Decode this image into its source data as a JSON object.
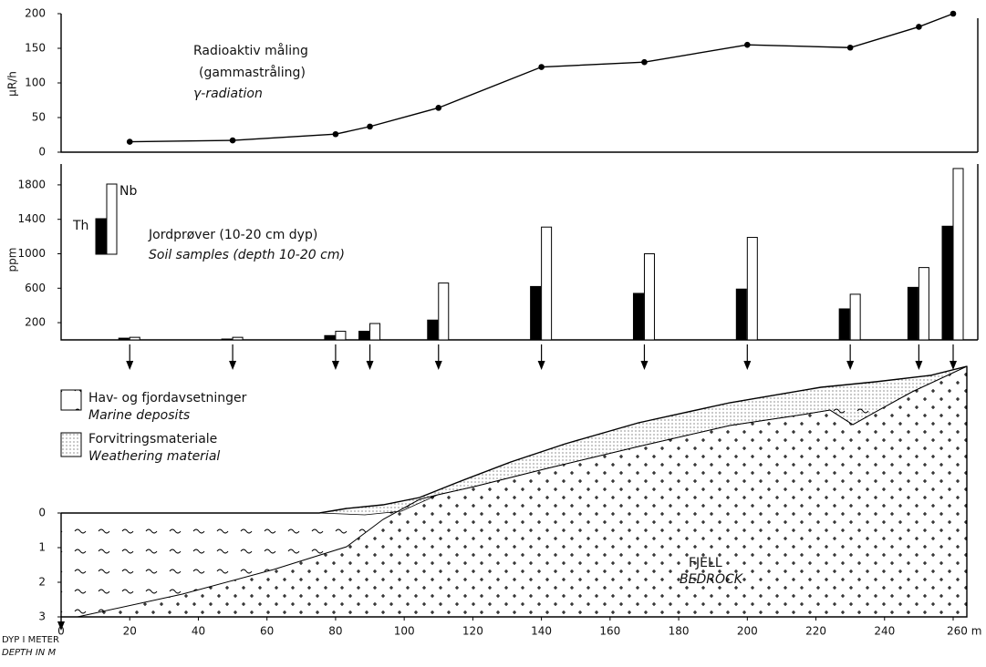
{
  "chart_data": [
    {
      "type": "line",
      "y_label": "μR/h",
      "annotations": [
        "Radioaktiv måling",
        "(gammastråling)",
        "γ-radiation"
      ],
      "x": [
        20,
        50,
        80,
        90,
        110,
        140,
        170,
        200,
        230,
        250,
        260
      ],
      "values": [
        15,
        17,
        26,
        37,
        64,
        123,
        130,
        155,
        151,
        181,
        200
      ],
      "color": "#000000",
      "xlim": [
        0,
        260
      ],
      "ylim": [
        0,
        200
      ],
      "yticks": [
        0,
        50,
        100,
        150,
        200
      ]
    },
    {
      "type": "bar",
      "y_label": "ppm",
      "annotations": [
        "Jordprøver (10-20 cm dyp)",
        "Soil samples (depth 10-20 cm)"
      ],
      "x": [
        20,
        50,
        80,
        90,
        110,
        140,
        170,
        200,
        230,
        250,
        260
      ],
      "series": [
        {
          "name": "Th",
          "color": "#000000",
          "values": [
            20,
            10,
            50,
            100,
            230,
            620,
            540,
            590,
            360,
            610,
            1320
          ]
        },
        {
          "name": "Nb",
          "color": "#ffffff",
          "values": [
            30,
            30,
            100,
            190,
            660,
            1310,
            1000,
            1190,
            530,
            840,
            1990
          ]
        }
      ],
      "xlim": [
        0,
        260
      ],
      "ylim": [
        0,
        2000
      ],
      "yticks": [
        200,
        600,
        1000,
        1400,
        1800
      ]
    },
    {
      "type": "cross-section",
      "y_label": [
        "DYP I METER",
        "DEPTH IN M"
      ],
      "legend": [
        [
          "Hav- og fjordavsetninger",
          "Marine deposits"
        ],
        [
          "Forvitringsmateriale",
          "Weathering material"
        ]
      ],
      "annotations": [
        "FJELL",
        "BEDROCK"
      ],
      "xlim": [
        0,
        260
      ],
      "xticks": [
        0,
        20,
        40,
        60,
        80,
        100,
        120,
        140,
        160,
        180,
        200,
        220,
        240,
        {
          "value": 260,
          "label": "260 m"
        }
      ],
      "ylim": [
        0,
        3
      ],
      "yticks": [
        0,
        1,
        2,
        3
      ]
    }
  ]
}
